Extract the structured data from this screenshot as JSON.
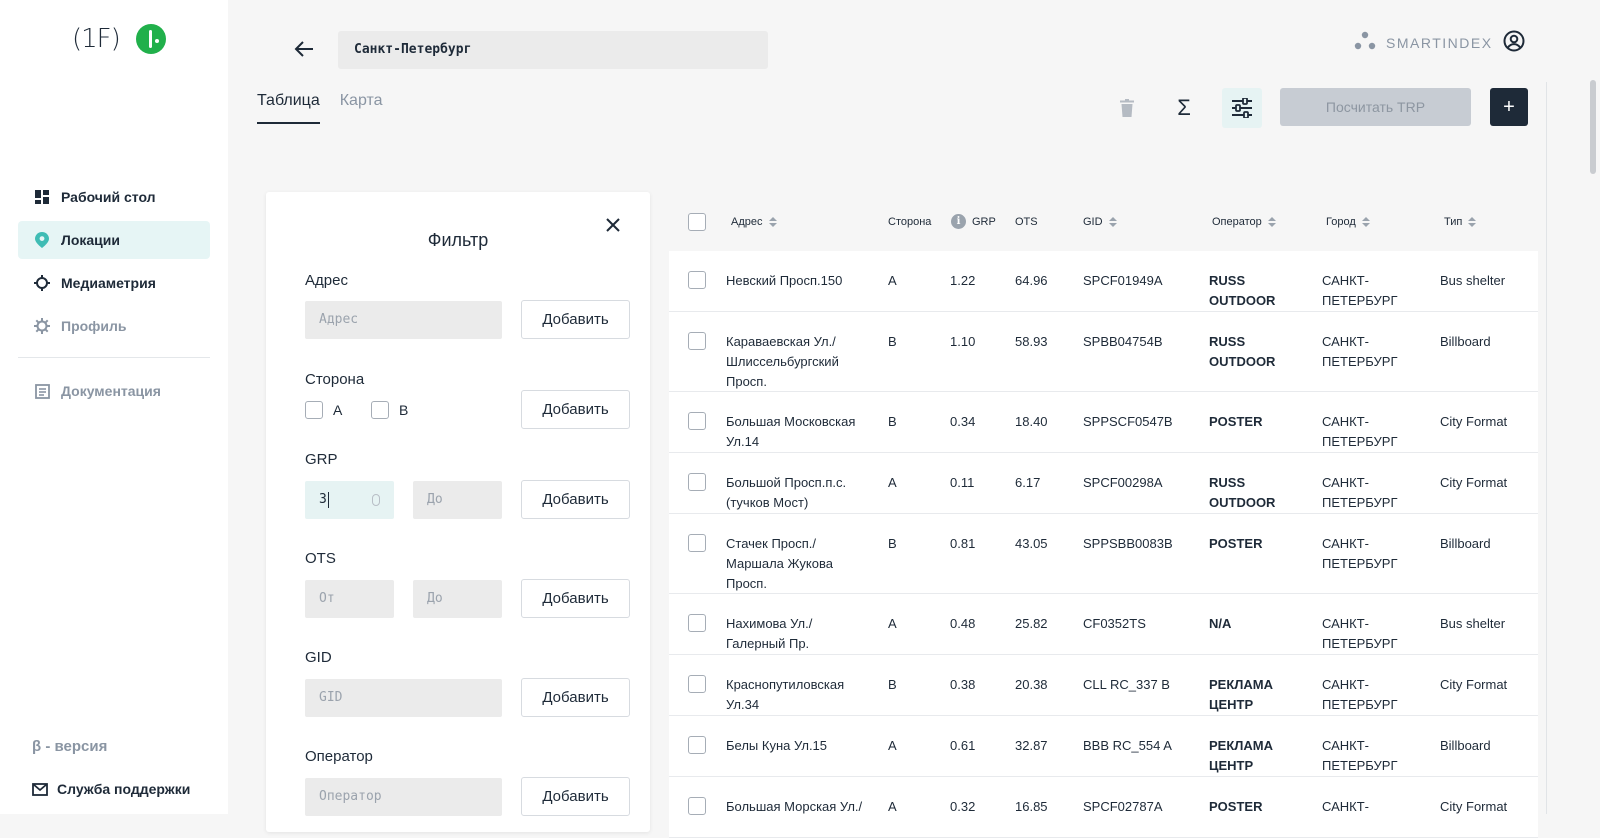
{
  "sidebar": {
    "logo_text": "(1F)",
    "nav": [
      {
        "label": "Рабочий стол",
        "icon": "dashboard-icon"
      },
      {
        "label": "Локации",
        "icon": "map-pin-icon"
      },
      {
        "label": "Медиаметрия",
        "icon": "crosshair-icon"
      },
      {
        "label": "Профиль",
        "icon": "gear-icon"
      },
      {
        "label": "Документация",
        "icon": "document-icon"
      }
    ],
    "beta": "β - версия",
    "support": "Служба поддержки"
  },
  "header": {
    "city": "Санкт-Петербург",
    "brand": "SMARTINDEX"
  },
  "tabs": [
    {
      "label": "Таблица",
      "active": true
    },
    {
      "label": "Карта",
      "active": false
    }
  ],
  "toolbar": {
    "sigma": "Σ",
    "trp_label": "Посчитать TRP",
    "add_label": "+"
  },
  "filter": {
    "title": "Фильтр",
    "add_label": "Добавить",
    "address_label": "Адрес",
    "address_placeholder": "Адрес",
    "side_label": "Сторона",
    "side_a": "A",
    "side_b": "B",
    "grp_label": "GRP",
    "grp_from_value": "3",
    "grp_to_placeholder": "До",
    "ots_label": "OTS",
    "ots_from_placeholder": "От",
    "ots_to_placeholder": "До",
    "gid_label": "GID",
    "gid_placeholder": "GID",
    "operator_label": "Оператор",
    "operator_placeholder": "Оператор"
  },
  "table": {
    "columns": {
      "address": "Адрес",
      "side": "Сторона",
      "grp": "GRP",
      "ots": "OTS",
      "gid": "GID",
      "operator": "Оператор",
      "city": "Город",
      "type": "Тип"
    },
    "rows": [
      {
        "address": "Невский Просп.150",
        "side": "A",
        "grp": "1.22",
        "ots": "64.96",
        "gid": "SPCF01949A",
        "operator": "RUSS OUTDOOR",
        "city": "САНКТ-ПЕТЕРБУРГ",
        "type": "Bus shelter"
      },
      {
        "address": "Караваевская Ул./ Шлиссельбургский Просп.",
        "side": "B",
        "grp": "1.10",
        "ots": "58.93",
        "gid": "SPBB04754B",
        "operator": "RUSS OUTDOOR",
        "city": "САНКТ-ПЕТЕРБУРГ",
        "type": "Billboard"
      },
      {
        "address": "Большая Московская Ул.14",
        "side": "B",
        "grp": "0.34",
        "ots": "18.40",
        "gid": "SPPSCF0547B",
        "operator": "POSTER",
        "city": "САНКТ-ПЕТЕРБУРГ",
        "type": "City Format"
      },
      {
        "address": "Большой Просп.п.с. (тучков Мост)",
        "side": "A",
        "grp": "0.11",
        "ots": "6.17",
        "gid": "SPCF00298A",
        "operator": "RUSS OUTDOOR",
        "city": "САНКТ-ПЕТЕРБУРГ",
        "type": "City Format"
      },
      {
        "address": "Стачек Просп./ Маршала Жукова Просп.",
        "side": "B",
        "grp": "0.81",
        "ots": "43.05",
        "gid": "SPPSBB0083B",
        "operator": "POSTER",
        "city": "САНКТ-ПЕТЕРБУРГ",
        "type": "Billboard"
      },
      {
        "address": "Нахимова Ул./ Галерный Пр.",
        "side": "A",
        "grp": "0.48",
        "ots": "25.82",
        "gid": "CF0352TS",
        "operator": "N/A",
        "city": "САНКТ-ПЕТЕРБУРГ",
        "type": "Bus shelter"
      },
      {
        "address": "Краснопутиловская Ул.34",
        "side": "B",
        "grp": "0.38",
        "ots": "20.38",
        "gid": "CLL RC_337 B",
        "operator": "РЕКЛАМА ЦЕНТР",
        "city": "САНКТ-ПЕТЕРБУРГ",
        "type": "City Format"
      },
      {
        "address": "Белы Куна Ул.15",
        "side": "A",
        "grp": "0.61",
        "ots": "32.87",
        "gid": "BBB RC_554 A",
        "operator": "РЕКЛАМА ЦЕНТР",
        "city": "САНКТ-ПЕТЕРБУРГ",
        "type": "Billboard"
      },
      {
        "address": "Большая Морская Ул./",
        "side": "A",
        "grp": "0.32",
        "ots": "16.85",
        "gid": "SPCF02787A",
        "operator": "POSTER",
        "city": "САНКТ-",
        "type": "City Format"
      }
    ]
  },
  "colors": {
    "accent": "#21b04b",
    "dark": "#1e2a38",
    "muted": "#8a95a3",
    "active_bg": "#e6f5f5"
  }
}
